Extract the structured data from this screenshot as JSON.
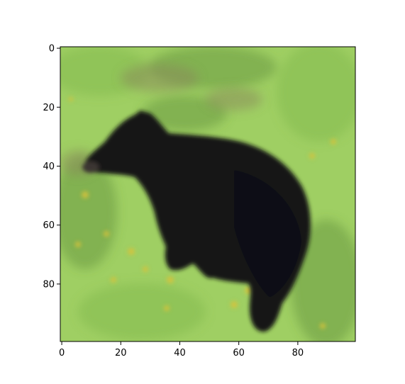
{
  "image": {
    "subject_icon": "bear-image",
    "grid_size": [
      100,
      100
    ],
    "colors": {
      "grass_light": "#9fcf63",
      "grass_mid": "#7fb64a",
      "grass_dark": "#5e8f3a",
      "dirt": "#8a8a5a",
      "flowers": "#d8c23a",
      "bear_fur": "#121418",
      "bear_shadow": "#0b0c10",
      "muzzle": "#3a3430",
      "border": "#000000"
    }
  },
  "axes": {
    "x_ticks": [
      {
        "value": 0,
        "label": "0"
      },
      {
        "value": 20,
        "label": "20"
      },
      {
        "value": 40,
        "label": "40"
      },
      {
        "value": 60,
        "label": "60"
      },
      {
        "value": 80,
        "label": "80"
      }
    ],
    "y_ticks": [
      {
        "value": 0,
        "label": "0"
      },
      {
        "value": 20,
        "label": "20"
      },
      {
        "value": 40,
        "label": "40"
      },
      {
        "value": 60,
        "label": "60"
      },
      {
        "value": 80,
        "label": "80"
      }
    ]
  }
}
